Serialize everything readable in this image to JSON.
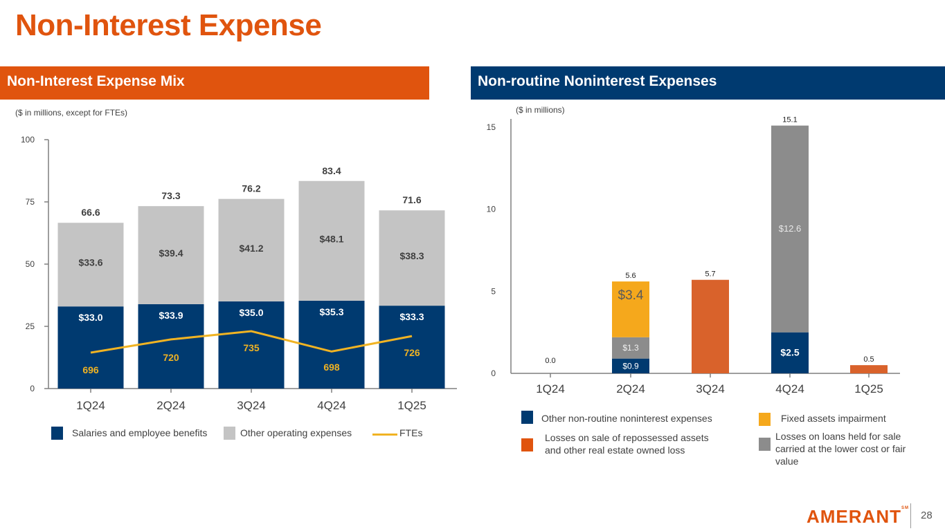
{
  "page": {
    "title": "Non-Interest Expense",
    "page_number": "28",
    "logo_text": "AMERANT",
    "logo_mark": "SM"
  },
  "left_panel": {
    "header": "Non-Interest Expense Mix",
    "note": "($ in millions, except for FTEs)",
    "legend": [
      {
        "label": "Salaries and employee benefits",
        "color": "#003a70",
        "kind": "box"
      },
      {
        "label": "Other operating expenses",
        "color": "#c4c4c4",
        "kind": "box"
      },
      {
        "label": "FTEs",
        "color": "#f0b323",
        "kind": "line"
      }
    ]
  },
  "right_panel": {
    "header": "Non-routine Noninterest Expenses",
    "note": "($ in millions)",
    "legend": [
      {
        "label": "Other non-routine noninterest expenses",
        "color": "#003a70"
      },
      {
        "label": "Fixed assets impairment",
        "color": "#f5a81c"
      },
      {
        "label": "Losses on sale of repossessed assets and other real estate owned loss",
        "color": "#e0540e"
      },
      {
        "label": "Losses on loans held for sale carried at the lower cost or fair value",
        "color": "#8c8c8c"
      }
    ]
  },
  "chart_data": [
    {
      "type": "bar",
      "stacked": true,
      "title": "Non-Interest Expense Mix",
      "subtitle": "($ in millions, except for FTEs)",
      "categories": [
        "1Q24",
        "2Q24",
        "3Q24",
        "4Q24",
        "1Q25"
      ],
      "ylim": [
        0,
        100
      ],
      "yticks": [
        0,
        25,
        50,
        75,
        100
      ],
      "series": [
        {
          "name": "Salaries and employee benefits",
          "color": "#003a70",
          "values": [
            33.0,
            33.9,
            35.0,
            35.3,
            33.3
          ],
          "labels": [
            "$33.0",
            "$33.9",
            "$35.0",
            "$35.3",
            "$33.3"
          ]
        },
        {
          "name": "Other operating expenses",
          "color": "#c4c4c4",
          "values": [
            33.6,
            39.4,
            41.2,
            48.1,
            38.3
          ],
          "labels": [
            "$33.6",
            "$39.4",
            "$41.2",
            "$48.1",
            "$38.3"
          ]
        }
      ],
      "totals": [
        66.6,
        73.3,
        76.2,
        83.4,
        71.6
      ],
      "total_labels": [
        "66.6",
        "73.3",
        "76.2",
        "83.4",
        "71.6"
      ],
      "line_series": {
        "name": "FTEs",
        "color": "#f0b323",
        "values": [
          696,
          720,
          735,
          698,
          726
        ],
        "labels": [
          "696",
          "720",
          "735",
          "698",
          "726"
        ],
        "axis": "secondary (hidden)"
      },
      "grid": false,
      "legend": "bottom"
    },
    {
      "type": "bar",
      "stacked": true,
      "title": "Non-routine Noninterest Expenses",
      "subtitle": "($ in millions)",
      "categories": [
        "1Q24",
        "2Q24",
        "3Q24",
        "4Q24",
        "1Q25"
      ],
      "ylim": [
        0,
        15.5
      ],
      "yticks": [
        0,
        5,
        10,
        15
      ],
      "series": [
        {
          "name": "Other non-routine noninterest expenses",
          "color": "#003a70",
          "values": [
            0,
            0.9,
            0,
            2.5,
            0
          ],
          "labels": [
            "",
            "$0.9",
            "",
            "$2.5",
            ""
          ]
        },
        {
          "name": "Losses on loans held for sale carried at the lower cost or fair value",
          "color": "#8c8c8c",
          "values": [
            0,
            1.3,
            0,
            12.6,
            0
          ],
          "labels": [
            "",
            "$1.3",
            "",
            "$12.6",
            ""
          ]
        },
        {
          "name": "Fixed assets impairment",
          "color": "#f5a81c",
          "values": [
            0,
            3.4,
            0,
            0,
            0
          ],
          "labels": [
            "",
            "$3.4",
            "",
            "",
            ""
          ]
        },
        {
          "name": "Losses on sale of repossessed assets and other real estate owned loss",
          "color": "#d9622b",
          "values": [
            0,
            0,
            5.7,
            0,
            0.5
          ],
          "labels": [
            "",
            "",
            "",
            "",
            ""
          ]
        }
      ],
      "totals": [
        0.0,
        5.6,
        5.7,
        15.1,
        0.5
      ],
      "total_labels": [
        "0.0",
        "5.6",
        "5.7",
        "15.1",
        "0.5"
      ],
      "grid": false,
      "legend": "bottom"
    }
  ]
}
